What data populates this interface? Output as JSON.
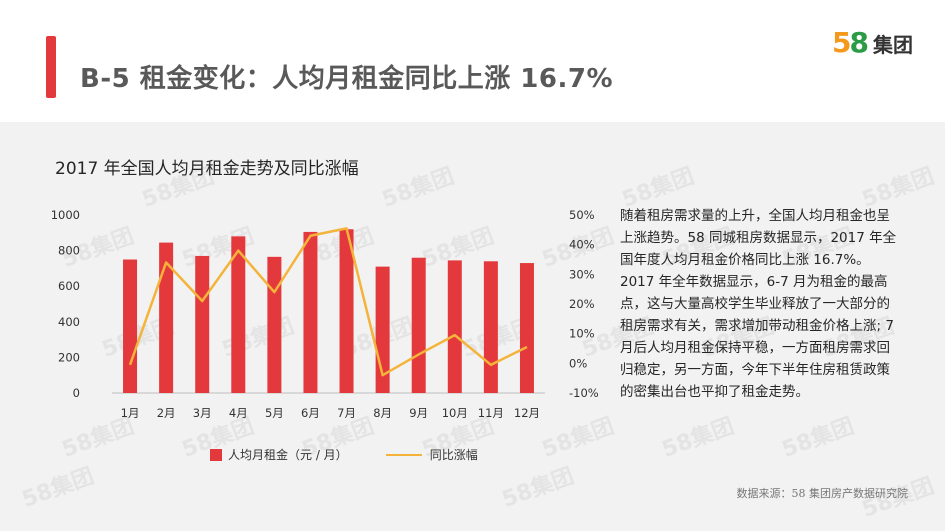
{
  "header": {
    "title": "B-5 租金变化：人均月租金同比上涨 16.7%",
    "logo_number_5": "5",
    "logo_number_8": "8",
    "logo_text": "集团"
  },
  "colors": {
    "accent": "#e4393c",
    "bar": "#e4393c",
    "line": "#f4b33a",
    "background": "#f2f2f2"
  },
  "watermark": "58集团",
  "chart_data": {
    "type": "bar",
    "title": "2017 年全国人均月租金走势及同比涨幅",
    "categories": [
      "1月",
      "2月",
      "3月",
      "4月",
      "5月",
      "6月",
      "7月",
      "8月",
      "9月",
      "10月",
      "11月",
      "12月"
    ],
    "series": [
      {
        "name": "人均月租金（元 / 月）",
        "type": "bar",
        "axis": "left",
        "values": [
          750,
          845,
          770,
          880,
          765,
          905,
          920,
          710,
          760,
          745,
          740,
          730
        ]
      },
      {
        "name": "同比涨幅",
        "type": "line",
        "axis": "right",
        "values": [
          -0.5,
          34,
          21,
          38,
          24,
          43,
          45.5,
          -4,
          3,
          9.5,
          -0.5,
          5.5
        ]
      }
    ],
    "left_axis": {
      "ylim": [
        0,
        1000
      ],
      "ticks": [
        "0",
        "200",
        "400",
        "600",
        "800",
        "1000"
      ]
    },
    "right_axis": {
      "ylim": [
        -10,
        50
      ],
      "ticks": [
        "-10%",
        "0%",
        "10%",
        "20%",
        "30%",
        "40%",
        "50%"
      ]
    },
    "grid": false,
    "legend": "bottom"
  },
  "paragraph": {
    "p1": "随着租房需求量的上升，全国人均月租金也呈上涨趋势。58 同城租房数据显示，2017 年全国年度人均月租金价格同比上涨 16.7%。",
    "p2": "2017 年全年数据显示，6-7 月为租金的最高点，这与大量高校学生毕业释放了一大部分的租房需求有关，需求增加带动租金价格上涨; 7 月后人均月租金保持平稳，一方面租房需求回归稳定，另一方面，今年下半年住房租赁政策的密集出台也平抑了租金走势。"
  },
  "source": "数据来源：58 集团房产数据研究院"
}
